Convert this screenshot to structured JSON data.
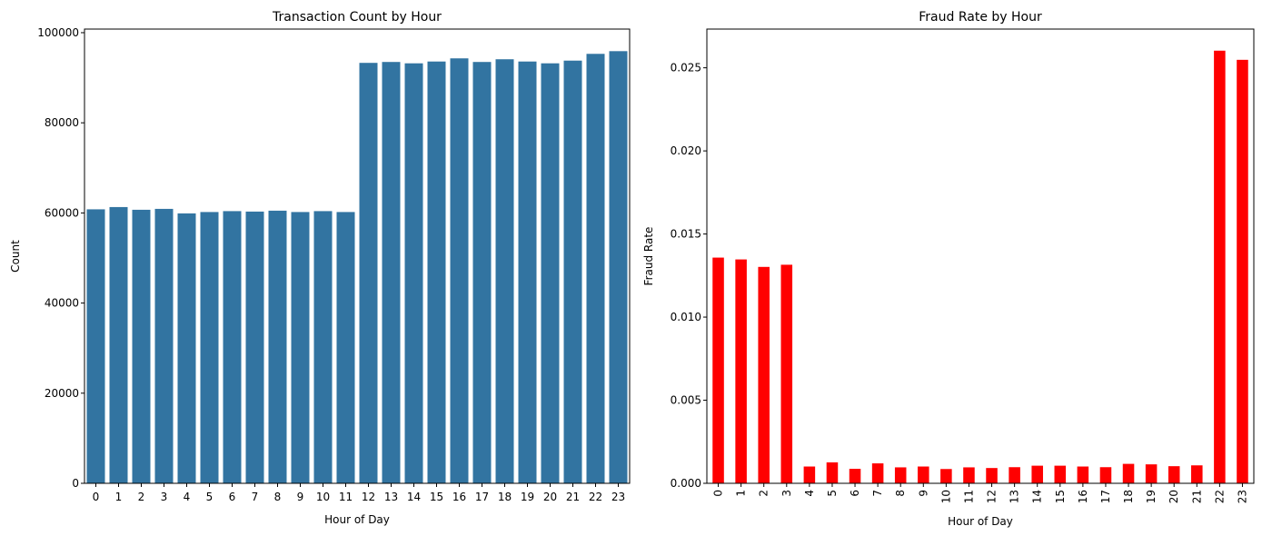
{
  "chart_data": [
    {
      "type": "bar",
      "title": "Transaction Count by Hour",
      "xlabel": "Hour of Day",
      "ylabel": "Count",
      "categories": [
        "0",
        "1",
        "2",
        "3",
        "4",
        "5",
        "6",
        "7",
        "8",
        "9",
        "10",
        "11",
        "12",
        "13",
        "14",
        "15",
        "16",
        "17",
        "18",
        "19",
        "20",
        "21",
        "22",
        "23"
      ],
      "values": [
        60800,
        61300,
        60700,
        60900,
        59900,
        60200,
        60400,
        60300,
        60500,
        60200,
        60400,
        60200,
        93300,
        93500,
        93200,
        93600,
        94300,
        93500,
        94100,
        93600,
        93200,
        93800,
        95300,
        95900
      ],
      "ylim": [
        0,
        100800
      ],
      "yticks": [
        "0",
        "20000",
        "40000",
        "60000",
        "80000",
        "100000"
      ],
      "bar_color": "#3274a1",
      "grid": false,
      "tick_rotation": "horizontal"
    },
    {
      "type": "bar",
      "title": "Fraud Rate by Hour",
      "xlabel": "Hour of Day",
      "ylabel": "Fraud Rate",
      "categories": [
        "0",
        "1",
        "2",
        "3",
        "4",
        "5",
        "6",
        "7",
        "8",
        "9",
        "10",
        "11",
        "12",
        "13",
        "14",
        "15",
        "16",
        "17",
        "18",
        "19",
        "20",
        "21",
        "22",
        "23"
      ],
      "values": [
        0.01358,
        0.01347,
        0.01302,
        0.01315,
        0.00101,
        0.00126,
        0.00087,
        0.0012,
        0.00096,
        0.00101,
        0.00086,
        0.00096,
        0.00092,
        0.00097,
        0.00106,
        0.00106,
        0.00101,
        0.00097,
        0.00117,
        0.00114,
        0.00103,
        0.00108,
        0.02603,
        0.02548
      ],
      "ylim": [
        0,
        0.02733
      ],
      "yticks": [
        "0.000",
        "0.005",
        "0.010",
        "0.015",
        "0.020",
        "0.025"
      ],
      "bar_color": "#ff0000",
      "grid": false,
      "tick_rotation": "vertical"
    }
  ]
}
